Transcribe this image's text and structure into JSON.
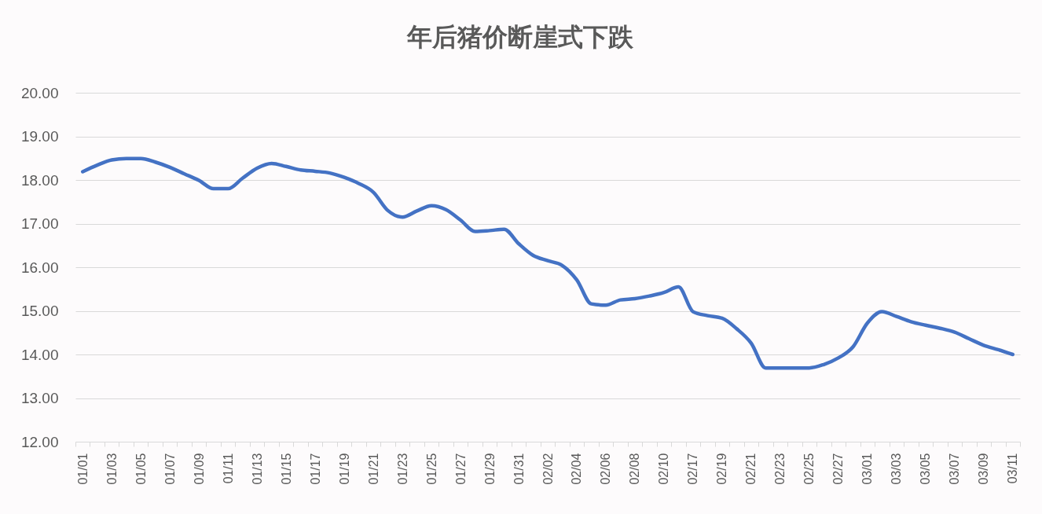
{
  "chart_data": {
    "type": "line",
    "title": "年后猪价断崖式下跌",
    "categories": [
      "01/01",
      null,
      "01/03",
      null,
      "01/05",
      null,
      "01/07",
      null,
      "01/09",
      null,
      "01/11",
      null,
      "01/13",
      null,
      "01/15",
      null,
      "01/17",
      null,
      "01/19",
      null,
      "01/21",
      null,
      "01/23",
      null,
      "01/25",
      null,
      "01/27",
      null,
      "01/29",
      null,
      "01/31",
      null,
      "02/02",
      null,
      "02/04",
      null,
      "02/06",
      null,
      "02/08",
      null,
      "02/10",
      null,
      "02/17",
      null,
      "02/19",
      null,
      "02/21",
      null,
      "02/23",
      null,
      "02/25",
      null,
      "02/27",
      null,
      "03/01",
      null,
      "03/03",
      null,
      "03/05",
      null,
      "03/07",
      null,
      "03/09",
      null,
      "03/11"
    ],
    "values": [
      18.19,
      18.34,
      18.46,
      18.49,
      18.49,
      18.41,
      18.29,
      18.14,
      17.99,
      17.8,
      17.8,
      18.04,
      18.27,
      18.38,
      18.31,
      18.23,
      18.2,
      18.16,
      18.06,
      17.92,
      17.72,
      17.3,
      17.15,
      17.29,
      17.41,
      17.32,
      17.08,
      16.82,
      16.84,
      16.87,
      16.54,
      16.27,
      16.15,
      16.04,
      15.71,
      15.16,
      15.13,
      15.25,
      15.28,
      15.34,
      15.42,
      15.55,
      14.98,
      14.89,
      14.83,
      14.59,
      14.26,
      13.69,
      13.69,
      13.69,
      13.69,
      13.77,
      13.92,
      14.17,
      14.72,
      14.98,
      14.87,
      14.75,
      14.67,
      14.6,
      14.51,
      14.36,
      14.21,
      14.11,
      14.0
    ],
    "color": "#4472c4",
    "ylim": [
      12,
      20
    ],
    "yticks": [
      {
        "value": 12,
        "label": "12.00"
      },
      {
        "value": 13,
        "label": "13.00"
      },
      {
        "value": 14,
        "label": "14.00"
      },
      {
        "value": 15,
        "label": "15.00"
      },
      {
        "value": 16,
        "label": "16.00"
      },
      {
        "value": 17,
        "label": "17.00"
      },
      {
        "value": 18,
        "label": "18.00"
      },
      {
        "value": 19,
        "label": "19.00"
      },
      {
        "value": 20,
        "label": "20.00"
      }
    ],
    "grid": "y"
  }
}
